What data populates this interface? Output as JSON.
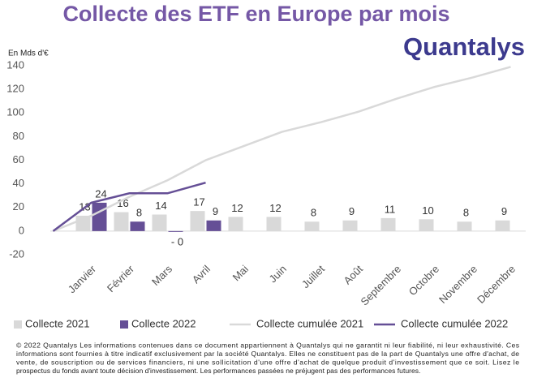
{
  "chart_data": {
    "type": "bar",
    "title": "Collecte des ETF en Europe par mois",
    "logo": "Quantalys",
    "y_label": "En Mds d'€",
    "categories": [
      null,
      "Janvier",
      "Février",
      "Mars",
      "Avril",
      "Mai",
      "Juin",
      "Juillet",
      "Août",
      "Septembre",
      "Octobre",
      "Novembre",
      "Décembre"
    ],
    "ylim": [
      -20,
      140
    ],
    "yticks": [
      -20,
      0,
      20,
      40,
      60,
      80,
      100,
      120,
      140
    ],
    "grid": false,
    "series": [
      {
        "name": "Collecte 2021",
        "type": "bar",
        "color": "#d9d9d9",
        "values": [
          null,
          13,
          16,
          14,
          17,
          12,
          12,
          8,
          9,
          11,
          10,
          8,
          9
        ]
      },
      {
        "name": "Collecte 2022",
        "type": "bar",
        "color": "#654f96",
        "values": [
          null,
          24,
          8,
          -0.3,
          9,
          null,
          null,
          null,
          null,
          null,
          null,
          null,
          null
        ],
        "value_labels": [
          null,
          "24",
          "8",
          "- 0",
          "9",
          null,
          null,
          null,
          null,
          null,
          null,
          null,
          null
        ]
      },
      {
        "name": "Collecte cumulée 2021",
        "type": "line",
        "color": "#d9d9d9",
        "values": [
          0,
          13,
          29,
          43,
          60,
          72,
          84,
          92,
          101,
          112,
          122,
          130,
          139
        ]
      },
      {
        "name": "Collecte cumulée 2022",
        "type": "line",
        "color": "#654f96",
        "values": [
          0,
          24,
          32,
          32,
          41,
          null,
          null,
          null,
          null,
          null,
          null,
          null,
          null
        ]
      }
    ],
    "legend": "bottom",
    "footer": [
      "© 2022 Quantalys Les informations contenues dans ce document appartiennent à Quantalys qui ne garantit ni leur fiabilité, ni leur exhaustivité. Ces",
      "informations sont fournies à titre indicatif exclusivement par la société Quantalys. Elles ne constituent pas de la part de Quantalys une offre d'achat, de",
      "vente, de souscription ou de services financiers, ni une sollicitation d'une offre d'achat de quelque produit d'investissement que ce soit. Lisez le",
      "prospectus du fonds avant toute décision d'investissement. Les performances passées ne préjugent pas des performances futures."
    ]
  }
}
